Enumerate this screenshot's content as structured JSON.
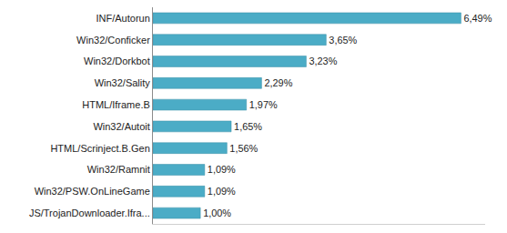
{
  "chart_data": {
    "type": "bar",
    "orientation": "horizontal",
    "categories": [
      "INF/Autorun",
      "Win32/Conficker",
      "Win32/Dorkbot",
      "Win32/Sality",
      "HTML/Iframe.B",
      "Win32/Autoit",
      "HTML/Scrinject.B.Gen",
      "Win32/Ramnit",
      "Win32/PSW.OnLineGame",
      "JS/TrojanDownloader.Ifra..."
    ],
    "values": [
      6.49,
      3.65,
      3.23,
      2.29,
      1.97,
      1.65,
      1.56,
      1.09,
      1.09,
      1.0
    ],
    "value_labels": [
      "6,49%",
      "3,65%",
      "3,23%",
      "2,29%",
      "1,97%",
      "1,65%",
      "1,56%",
      "1,09%",
      "1,09%",
      "1,00%"
    ],
    "color": "#4bacc6",
    "xlim": [
      0,
      7
    ],
    "xticks": [],
    "grid": false,
    "data_labels": true,
    "tick_labels": "y"
  }
}
